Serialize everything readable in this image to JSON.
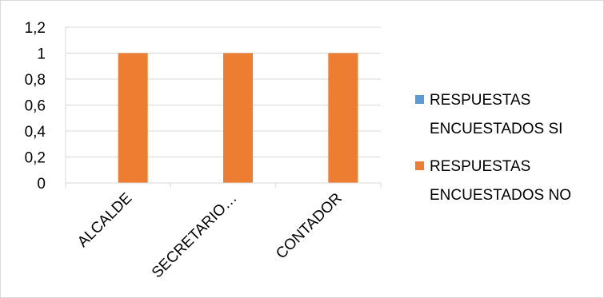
{
  "chart_data": {
    "type": "bar",
    "categories": [
      "ALCALDE",
      "SECRETARIO…",
      "CONTADOR"
    ],
    "series": [
      {
        "name": "RESPUESTAS ENCUESTADOS SI",
        "values": [
          0,
          0,
          0
        ],
        "color": "#5B9BD5"
      },
      {
        "name": "RESPUESTAS ENCUESTADOS NO",
        "values": [
          1,
          1,
          1
        ],
        "color": "#ED7D31"
      }
    ],
    "y_ticks": [
      "0",
      "0,2",
      "0,4",
      "0,6",
      "0,8",
      "1",
      "1,2"
    ],
    "ylim": [
      0,
      1.2
    ],
    "grid": true,
    "legend_position": "right",
    "legend": [
      {
        "line1": "RESPUESTAS",
        "line2": "ENCUESTADOS SI",
        "color": "#5B9BD5"
      },
      {
        "line1": "RESPUESTAS",
        "line2": "ENCUESTADOS NO",
        "color": "#ED7D31"
      }
    ]
  }
}
